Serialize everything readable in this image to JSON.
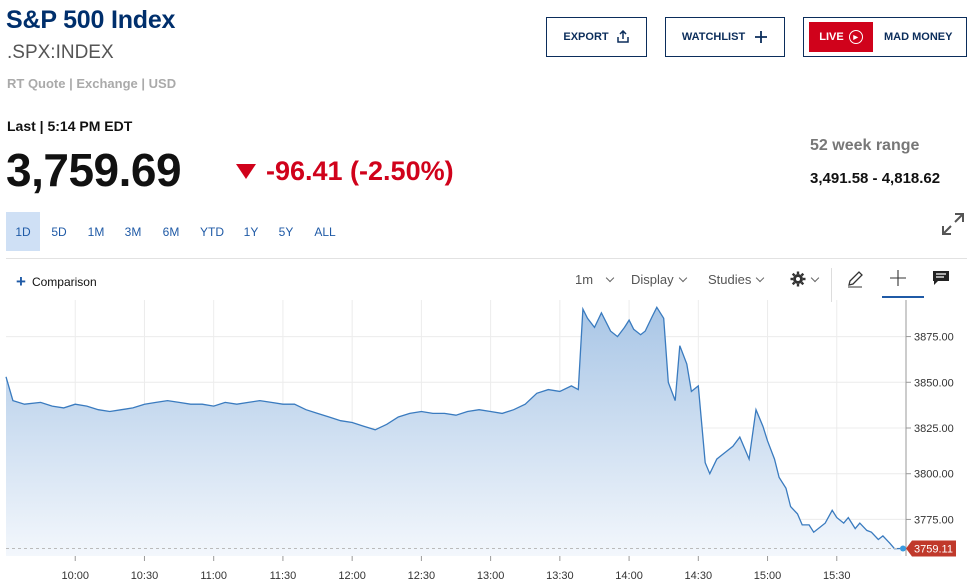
{
  "header": {
    "title": "S&P 500 Index",
    "symbol": ".SPX:INDEX",
    "quote_type": "RT Quote | Exchange | USD"
  },
  "buttons": {
    "export_label": "EXPORT",
    "watchlist_label": "WATCHLIST",
    "live_label": "LIVE",
    "mad_money_label": "MAD MONEY"
  },
  "quote": {
    "last_label": "Last | 5:14 PM EDT",
    "price": "3,759.69",
    "change": "-96.41 (-2.50%)",
    "range_label": "52 week range",
    "range_value": "3,491.58 - 4,818.62"
  },
  "tabs": [
    "1D",
    "5D",
    "1M",
    "3M",
    "6M",
    "YTD",
    "1Y",
    "5Y",
    "ALL"
  ],
  "active_tab": "1D",
  "toolbar": {
    "comparison_label": "Comparison",
    "interval_label": "1m",
    "display_label": "Display",
    "studies_label": "Studies"
  },
  "icons": [
    "share-icon",
    "plus-icon",
    "play-icon",
    "expand-icon",
    "gear-icon",
    "pencil-icon",
    "crosshair-icon",
    "comment-icon"
  ],
  "colors": {
    "accent": "#1f5aa6",
    "negative": "#d0021b",
    "title": "#002f6c",
    "line": "#3a7bbf"
  },
  "chart_data": {
    "type": "area",
    "x_ticks": [
      "10:00",
      "10:30",
      "11:00",
      "11:30",
      "12:00",
      "12:30",
      "13:00",
      "13:30",
      "14:00",
      "14:30",
      "15:00",
      "15:30"
    ],
    "y_ticks": [
      3775,
      3800,
      3825,
      3850,
      3875
    ],
    "y_tick_labels": [
      "3775.00",
      "3800.00",
      "3825.00",
      "3850.00",
      "3875.00"
    ],
    "ylim": [
      3755,
      3895
    ],
    "xlim_minutes": [
      570,
      960
    ],
    "last_value_label": "3759.11",
    "last_value": 3759.11,
    "grid": true,
    "x": [
      570,
      573,
      578,
      585,
      590,
      595,
      600,
      605,
      610,
      615,
      620,
      625,
      630,
      635,
      640,
      645,
      650,
      655,
      660,
      665,
      670,
      675,
      680,
      685,
      690,
      695,
      700,
      705,
      710,
      715,
      720,
      725,
      730,
      735,
      740,
      745,
      750,
      755,
      760,
      765,
      770,
      775,
      780,
      785,
      790,
      795,
      800,
      805,
      810,
      815,
      818,
      820,
      822,
      825,
      828,
      830,
      832,
      835,
      838,
      840,
      842,
      845,
      847,
      850,
      852,
      855,
      857,
      860,
      862,
      865,
      867,
      870,
      873,
      875,
      878,
      880,
      882,
      885,
      888,
      890,
      892,
      895,
      898,
      900,
      903,
      905,
      908,
      910,
      913,
      915,
      918,
      920,
      923,
      925,
      928,
      930,
      933,
      935,
      938,
      940,
      943,
      945,
      948,
      950,
      953,
      955,
      958
    ],
    "y": [
      3853,
      3840,
      3838,
      3839,
      3837,
      3836,
      3838,
      3837,
      3835,
      3834,
      3835,
      3836,
      3838,
      3839,
      3840,
      3839,
      3838,
      3838,
      3837,
      3839,
      3838,
      3839,
      3840,
      3839,
      3838,
      3838,
      3835,
      3833,
      3831,
      3829,
      3828,
      3826,
      3824,
      3827,
      3831,
      3833,
      3834,
      3833,
      3833,
      3832,
      3834,
      3835,
      3834,
      3833,
      3835,
      3838,
      3844,
      3846,
      3845,
      3848,
      3846,
      3890,
      3885,
      3880,
      3888,
      3883,
      3878,
      3875,
      3880,
      3884,
      3879,
      3876,
      3878,
      3886,
      3891,
      3885,
      3850,
      3840,
      3870,
      3860,
      3845,
      3848,
      3806,
      3800,
      3808,
      3810,
      3812,
      3815,
      3820,
      3814,
      3808,
      3835,
      3826,
      3818,
      3808,
      3798,
      3792,
      3782,
      3778,
      3772,
      3772,
      3768,
      3771,
      3773,
      3780,
      3776,
      3773,
      3776,
      3770,
      3773,
      3769,
      3768,
      3764,
      3766,
      3762,
      3759,
      3759.11
    ]
  }
}
